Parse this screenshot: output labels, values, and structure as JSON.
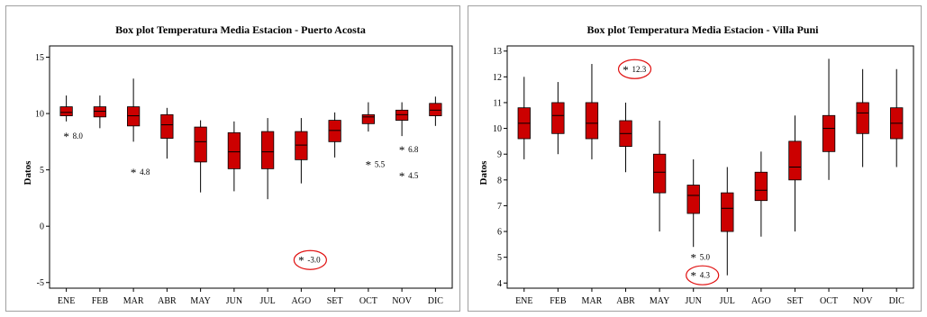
{
  "chart_data": [
    {
      "type": "box",
      "title": "Box plot Temperatura Media Estacion - Puerto Acosta",
      "ylabel": "Datos",
      "xlabel": "",
      "categories": [
        "ENE",
        "FEB",
        "MAR",
        "ABR",
        "MAY",
        "JUN",
        "JUL",
        "AGO",
        "SET",
        "OCT",
        "NOV",
        "DIC"
      ],
      "ylim": [
        -5.5,
        16
      ],
      "yticks": [
        -5,
        0,
        5,
        10,
        15
      ],
      "boxes": [
        {
          "min": 9.3,
          "q1": 9.8,
          "median": 10.1,
          "q3": 10.6,
          "max": 11.6
        },
        {
          "min": 8.7,
          "q1": 9.7,
          "median": 10.2,
          "q3": 10.6,
          "max": 11.6
        },
        {
          "min": 7.5,
          "q1": 8.9,
          "median": 9.8,
          "q3": 10.6,
          "max": 13.1
        },
        {
          "min": 6.0,
          "q1": 7.8,
          "median": 9.0,
          "q3": 9.9,
          "max": 10.5
        },
        {
          "min": 3.0,
          "q1": 5.7,
          "median": 7.5,
          "q3": 8.8,
          "max": 9.4
        },
        {
          "min": 3.1,
          "q1": 5.1,
          "median": 6.6,
          "q3": 8.3,
          "max": 9.3
        },
        {
          "min": 2.4,
          "q1": 5.1,
          "median": 6.6,
          "q3": 8.4,
          "max": 9.6
        },
        {
          "min": 3.8,
          "q1": 5.9,
          "median": 7.2,
          "q3": 8.4,
          "max": 9.6
        },
        {
          "min": 6.1,
          "q1": 7.5,
          "median": 8.5,
          "q3": 9.4,
          "max": 10.1
        },
        {
          "min": 8.4,
          "q1": 9.1,
          "median": 9.7,
          "q3": 9.9,
          "max": 11.0
        },
        {
          "min": 8.0,
          "q1": 9.4,
          "median": 9.9,
          "q3": 10.3,
          "max": 11.0
        },
        {
          "min": 8.9,
          "q1": 9.8,
          "median": 10.3,
          "q3": 10.9,
          "max": 11.5
        }
      ],
      "outliers": [
        {
          "category": "ENE",
          "value": 8.0,
          "label": "8.0",
          "highlight": false
        },
        {
          "category": "MAR",
          "value": 4.8,
          "label": "4.8",
          "highlight": false
        },
        {
          "category": "AGO",
          "value": -3.0,
          "label": "-3.0",
          "highlight": true
        },
        {
          "category": "OCT",
          "value": 5.5,
          "label": "5.5",
          "highlight": false
        },
        {
          "category": "NOV",
          "value": 6.8,
          "label": "6.8",
          "highlight": false
        },
        {
          "category": "NOV",
          "value": 4.5,
          "label": "4.5",
          "highlight": false
        }
      ],
      "box_color": "#cc0000",
      "highlight_color": "#e01010",
      "grid": false
    },
    {
      "type": "box",
      "title": "Box plot Temperatura Media Estacion - Villa Puni",
      "ylabel": "Datos",
      "xlabel": "",
      "categories": [
        "ENE",
        "FEB",
        "MAR",
        "ABR",
        "MAY",
        "JUN",
        "JUL",
        "AGO",
        "SET",
        "OCT",
        "NOV",
        "DIC"
      ],
      "ylim": [
        3.8,
        13.2
      ],
      "yticks": [
        4,
        5,
        6,
        7,
        8,
        9,
        10,
        11,
        12,
        13
      ],
      "boxes": [
        {
          "min": 8.8,
          "q1": 9.6,
          "median": 10.2,
          "q3": 10.8,
          "max": 12.0
        },
        {
          "min": 9.0,
          "q1": 9.8,
          "median": 10.5,
          "q3": 11.0,
          "max": 11.8
        },
        {
          "min": 8.8,
          "q1": 9.6,
          "median": 10.2,
          "q3": 11.0,
          "max": 12.5
        },
        {
          "min": 8.3,
          "q1": 9.3,
          "median": 9.8,
          "q3": 10.3,
          "max": 11.0
        },
        {
          "min": 6.0,
          "q1": 7.5,
          "median": 8.3,
          "q3": 9.0,
          "max": 10.3
        },
        {
          "min": 5.4,
          "q1": 6.7,
          "median": 7.4,
          "q3": 7.8,
          "max": 8.8
        },
        {
          "min": 4.3,
          "q1": 6.0,
          "median": 6.9,
          "q3": 7.5,
          "max": 8.5
        },
        {
          "min": 5.8,
          "q1": 7.2,
          "median": 7.6,
          "q3": 8.3,
          "max": 9.1
        },
        {
          "min": 6.0,
          "q1": 8.0,
          "median": 8.5,
          "q3": 9.5,
          "max": 10.5
        },
        {
          "min": 8.0,
          "q1": 9.1,
          "median": 10.0,
          "q3": 10.5,
          "max": 12.7
        },
        {
          "min": 8.5,
          "q1": 9.8,
          "median": 10.6,
          "q3": 11.0,
          "max": 12.3
        },
        {
          "min": 8.5,
          "q1": 9.6,
          "median": 10.2,
          "q3": 10.8,
          "max": 12.3
        }
      ],
      "outliers": [
        {
          "category": "ABR",
          "value": 12.3,
          "label": "12.3",
          "highlight": true
        },
        {
          "category": "JUN",
          "value": 5.0,
          "label": "5.0",
          "highlight": false
        },
        {
          "category": "JUN",
          "value": 4.3,
          "label": "4.3",
          "highlight": true
        }
      ],
      "box_color": "#cc0000",
      "highlight_color": "#e01010",
      "grid": false
    }
  ]
}
